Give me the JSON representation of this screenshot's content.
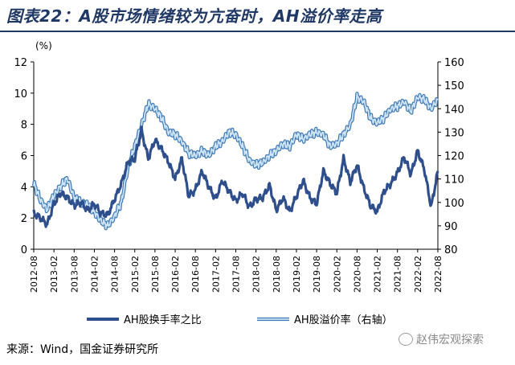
{
  "title": "图表22：A股市场情绪较为亢奋时，AH溢价率走高",
  "source": "来源：Wind，国金证券研究所",
  "watermark": "赵伟宏观探索",
  "colors": {
    "turnover": "#2e4e8c",
    "premium": "#8fbde6",
    "title": "#1f3864"
  },
  "chart_data": {
    "type": "line",
    "ylabel_left": "(%)",
    "ylim_left": [
      0,
      12
    ],
    "yticks_left": [
      0,
      2,
      4,
      6,
      8,
      10,
      12
    ],
    "ylim_right": [
      80,
      160
    ],
    "yticks_right": [
      80,
      90,
      100,
      110,
      120,
      130,
      140,
      150,
      160
    ],
    "x_ticks": [
      "2012-08",
      "2013-02",
      "2013-08",
      "2014-02",
      "2014-08",
      "2015-02",
      "2015-08",
      "2016-02",
      "2016-08",
      "2017-02",
      "2017-08",
      "2018-02",
      "2018-08",
      "2019-02",
      "2019-08",
      "2020-02",
      "2020-08",
      "2021-02",
      "2021-08",
      "2022-02",
      "2022-08"
    ],
    "legend_position": "bottom",
    "series": [
      {
        "name": "AH股换手率之比",
        "axis": "left",
        "x": [
          "2012-08",
          "2012-10",
          "2012-12",
          "2013-02",
          "2013-04",
          "2013-06",
          "2013-08",
          "2013-10",
          "2013-12",
          "2014-02",
          "2014-04",
          "2014-06",
          "2014-08",
          "2014-10",
          "2014-12",
          "2015-02",
          "2015-04",
          "2015-06",
          "2015-08",
          "2015-10",
          "2015-12",
          "2016-02",
          "2016-04",
          "2016-06",
          "2016-08",
          "2016-10",
          "2016-12",
          "2017-02",
          "2017-04",
          "2017-06",
          "2017-08",
          "2017-10",
          "2017-12",
          "2018-02",
          "2018-04",
          "2018-06",
          "2018-08",
          "2018-10",
          "2018-12",
          "2019-02",
          "2019-04",
          "2019-06",
          "2019-08",
          "2019-10",
          "2019-12",
          "2020-02",
          "2020-04",
          "2020-06",
          "2020-08",
          "2020-10",
          "2020-12",
          "2021-02",
          "2021-04",
          "2021-06",
          "2021-08",
          "2021-10",
          "2021-12",
          "2022-02",
          "2022-04",
          "2022-06",
          "2022-08"
        ],
        "values": [
          2.3,
          2.0,
          1.6,
          2.9,
          3.6,
          3.3,
          2.8,
          3.0,
          2.5,
          2.9,
          2.3,
          2.2,
          3.2,
          4.2,
          5.6,
          5.8,
          7.6,
          5.8,
          7.0,
          6.4,
          5.6,
          4.5,
          5.8,
          3.4,
          3.8,
          5.0,
          4.0,
          3.2,
          4.4,
          3.7,
          3.1,
          3.6,
          2.7,
          3.2,
          3.3,
          4.1,
          2.5,
          3.3,
          2.4,
          3.4,
          4.4,
          3.3,
          2.9,
          5.0,
          4.2,
          3.6,
          5.8,
          4.3,
          5.4,
          3.9,
          2.8,
          2.4,
          3.7,
          4.2,
          4.9,
          5.9,
          4.8,
          6.3,
          5.1,
          2.7,
          5.0
        ]
      },
      {
        "name": "AH股溢价率（右轴）",
        "axis": "right",
        "x": [
          "2012-08",
          "2012-10",
          "2012-12",
          "2013-02",
          "2013-04",
          "2013-06",
          "2013-08",
          "2013-10",
          "2013-12",
          "2014-02",
          "2014-04",
          "2014-06",
          "2014-08",
          "2014-10",
          "2014-12",
          "2015-02",
          "2015-04",
          "2015-06",
          "2015-08",
          "2015-10",
          "2015-12",
          "2016-02",
          "2016-04",
          "2016-06",
          "2016-08",
          "2016-10",
          "2016-12",
          "2017-02",
          "2017-04",
          "2017-06",
          "2017-08",
          "2017-10",
          "2017-12",
          "2018-02",
          "2018-04",
          "2018-06",
          "2018-08",
          "2018-10",
          "2018-12",
          "2019-02",
          "2019-04",
          "2019-06",
          "2019-08",
          "2019-10",
          "2019-12",
          "2020-02",
          "2020-04",
          "2020-06",
          "2020-08",
          "2020-10",
          "2020-12",
          "2021-02",
          "2021-04",
          "2021-06",
          "2021-08",
          "2021-10",
          "2021-12",
          "2022-02",
          "2022-04",
          "2022-06",
          "2022-08"
        ],
        "values": [
          108,
          101,
          97,
          103,
          107,
          110,
          102,
          100,
          99,
          96,
          92,
          90,
          94,
          100,
          115,
          124,
          133,
          142,
          140,
          136,
          130,
          129,
          126,
          121,
          120,
          122,
          120,
          124,
          126,
          130,
          129,
          124,
          118,
          116,
          117,
          120,
          122,
          125,
          124,
          129,
          127,
          129,
          130,
          129,
          124,
          125,
          129,
          133,
          145,
          143,
          136,
          134,
          136,
          140,
          141,
          143,
          139,
          145,
          144,
          140,
          144
        ]
      }
    ]
  }
}
